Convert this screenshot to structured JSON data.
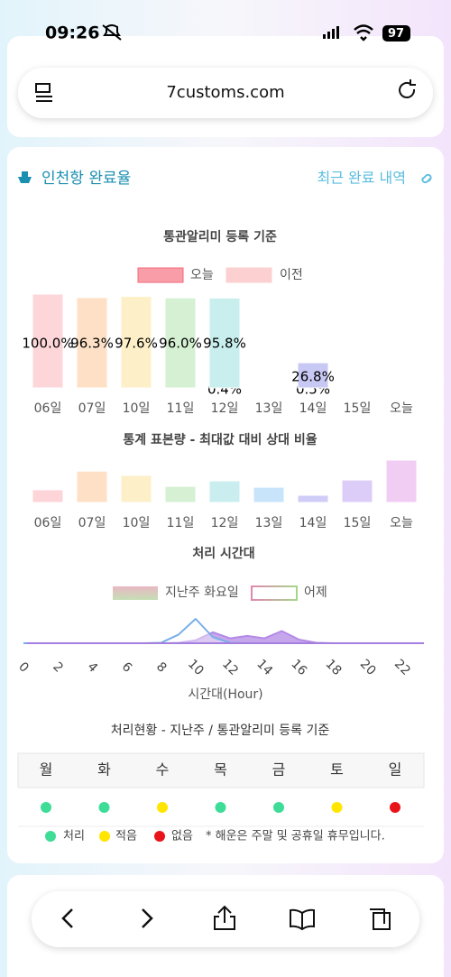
{
  "status_bar": {
    "time": "09:26",
    "battery": "97"
  },
  "browser": {
    "url": "7customs.com"
  },
  "card": {
    "title": "인천항 완료율",
    "link": "최근 완료 내역"
  },
  "chart_data": [
    {
      "type": "bar",
      "title": "통관알리미 등록 기준",
      "categories": [
        "06일",
        "07일",
        "10일",
        "11일",
        "12일",
        "13일",
        "14일",
        "15일",
        "오늘"
      ],
      "series": [
        {
          "name": "오늘",
          "color": "#f99ea8",
          "values": [
            null,
            null,
            null,
            null,
            0.4,
            null,
            0.5,
            null,
            null
          ],
          "value_labels": [
            null,
            null,
            null,
            null,
            "0.4%",
            null,
            "0.5%",
            null,
            null
          ]
        },
        {
          "name": "이전",
          "color": "#fcd0d0",
          "colors": [
            "#fdd6d9",
            "#fde0c6",
            "#fdefc8",
            "#d5f0d2",
            "#c9eeee",
            "#c8e4fb",
            "#c8c8f5",
            "#dccdf8",
            "#f2cdf3"
          ],
          "values": [
            100.0,
            96.3,
            97.6,
            96.0,
            95.8,
            null,
            26.8,
            null,
            null
          ],
          "value_labels": [
            "100.0%",
            "96.3%",
            "97.6%",
            "96.0%",
            "95.8%",
            null,
            "26.8%",
            null,
            null
          ]
        }
      ],
      "ylim": [
        0,
        100
      ]
    },
    {
      "type": "bar",
      "title": "통계 표본량 - 최대값 대비 상대 비율",
      "categories": [
        "06일",
        "07일",
        "10일",
        "11일",
        "12일",
        "13일",
        "14일",
        "15일",
        "오늘"
      ],
      "values": [
        30,
        74,
        64,
        38,
        51,
        36,
        17,
        53,
        100
      ],
      "colors": [
        "#fdd4d8",
        "#fde0c6",
        "#fdefc8",
        "#d5f0d2",
        "#caeef0",
        "#c8e4fb",
        "#cfcdf8",
        "#dccdf8",
        "#f2cdf3"
      ],
      "ylim": [
        0,
        100
      ]
    },
    {
      "type": "area",
      "title": "처리 시간대",
      "xlabel": "시간대(Hour)",
      "x": [
        0,
        1,
        2,
        3,
        4,
        5,
        6,
        7,
        8,
        9,
        10,
        11,
        12,
        13,
        14,
        15,
        16,
        17,
        18,
        19,
        20,
        21,
        22,
        23
      ],
      "series": [
        {
          "name": "지난주 화요일",
          "color": "#b48ae6",
          "values": [
            0,
            0,
            0,
            0,
            0,
            0,
            0,
            0,
            0,
            2,
            12,
            45,
            20,
            30,
            20,
            50,
            15,
            2,
            0,
            0,
            0,
            0,
            0,
            0
          ]
        },
        {
          "name": "어제",
          "color": "#78aee6",
          "values": [
            0,
            0,
            0,
            0,
            0,
            0,
            0,
            0,
            2,
            35,
            100,
            25,
            2,
            0,
            0,
            0,
            0,
            0,
            0,
            0,
            0,
            0,
            0,
            0
          ]
        }
      ],
      "xlim": [
        0,
        23
      ],
      "xticks": [
        0,
        2,
        4,
        6,
        8,
        10,
        12,
        14,
        16,
        18,
        20,
        22
      ],
      "ylim": [
        0,
        100
      ]
    }
  ],
  "weekly_status": {
    "title": "처리현황 - 지난주 / 통관알리미 등록 기준",
    "days": [
      "월",
      "화",
      "수",
      "목",
      "금",
      "토",
      "일"
    ],
    "status_colors": [
      "#3ddc97",
      "#3ddc97",
      "#ffe500",
      "#3ddc97",
      "#3ddc97",
      "#ffe500",
      "#e8141a"
    ],
    "legend": [
      {
        "label": "처리",
        "color": "#3ddc97"
      },
      {
        "label": "적음",
        "color": "#ffe500"
      },
      {
        "label": "없음",
        "color": "#e8141a"
      }
    ],
    "note": "* 해운은 주말 및 공휴일 휴무입니다."
  }
}
